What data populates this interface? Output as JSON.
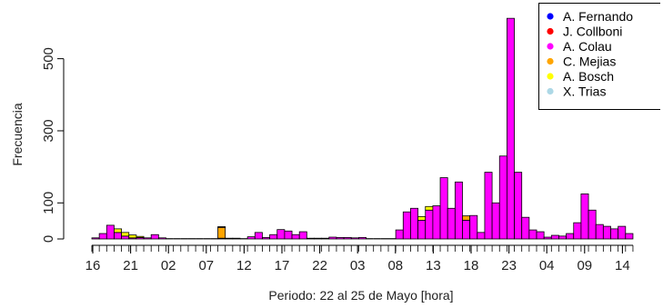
{
  "chart_data": {
    "type": "bar",
    "stacked": true,
    "xlabel": "Periodo: 22 al 25 de Mayo [hora]",
    "ylabel": "Frecuencia",
    "ylim": [
      0,
      620
    ],
    "yticks": [
      0,
      100,
      300,
      500
    ],
    "xtick_labels": [
      "16",
      "21",
      "02",
      "07",
      "12",
      "17",
      "22",
      "03",
      "08",
      "13",
      "18",
      "23",
      "04",
      "09",
      "14"
    ],
    "legend_position": "top-right",
    "series": [
      {
        "name": "A. Fernando",
        "color": "#0000ff",
        "values": [
          0,
          0,
          0,
          0,
          0,
          0,
          0,
          0,
          0,
          0,
          0,
          0,
          0,
          0,
          0,
          0,
          0,
          0,
          0,
          0,
          0,
          0,
          0,
          0,
          0,
          0,
          0,
          0,
          0,
          0,
          0,
          0,
          0,
          0,
          0,
          0,
          0,
          0,
          0,
          0,
          0,
          0,
          0,
          0,
          0,
          0,
          0,
          0,
          0,
          0,
          0,
          0,
          0,
          0,
          0,
          0,
          0,
          0,
          0,
          0,
          0,
          0,
          0,
          0,
          0,
          0,
          0,
          0,
          0,
          0,
          0,
          0,
          0
        ]
      },
      {
        "name": "J. Collboni",
        "color": "#ff0000",
        "values": [
          0,
          0,
          0,
          0,
          0,
          0,
          0,
          0,
          0,
          0,
          0,
          0,
          0,
          0,
          0,
          0,
          0,
          0,
          0,
          0,
          0,
          0,
          0,
          0,
          0,
          0,
          0,
          0,
          0,
          0,
          0,
          0,
          0,
          0,
          0,
          0,
          0,
          0,
          0,
          0,
          0,
          0,
          0,
          0,
          0,
          0,
          0,
          0,
          0,
          0,
          0,
          0,
          0,
          0,
          0,
          0,
          0,
          0,
          0,
          0,
          0,
          0,
          0,
          0,
          0,
          0,
          0,
          0,
          0,
          0,
          0,
          0,
          0
        ]
      },
      {
        "name": "A. Colau",
        "color": "#ff00ff",
        "values": [
          3,
          15,
          38,
          18,
          8,
          3,
          4,
          3,
          12,
          3,
          0,
          0,
          0,
          0,
          0,
          0,
          0,
          2,
          2,
          2,
          0,
          6,
          18,
          4,
          12,
          26,
          22,
          12,
          20,
          2,
          2,
          2,
          5,
          4,
          4,
          3,
          4,
          0,
          0,
          0,
          0,
          25,
          75,
          85,
          52,
          80,
          92,
          170,
          85,
          158,
          52,
          65,
          18,
          185,
          100,
          230,
          612,
          185,
          60,
          25,
          20,
          5,
          10,
          8,
          15,
          45,
          125,
          80,
          40,
          35,
          28,
          35,
          15
        ]
      },
      {
        "name": "C. Mejias",
        "color": "#ffa500",
        "values": [
          0,
          0,
          0,
          0,
          0,
          0,
          0,
          0,
          0,
          0,
          0,
          0,
          0,
          0,
          0,
          0,
          0,
          30,
          0,
          0,
          0,
          0,
          0,
          0,
          0,
          0,
          0,
          0,
          0,
          0,
          0,
          0,
          0,
          0,
          0,
          0,
          0,
          0,
          0,
          0,
          0,
          0,
          0,
          0,
          0,
          0,
          0,
          0,
          0,
          0,
          12,
          0,
          0,
          0,
          0,
          0,
          0,
          0,
          0,
          0,
          0,
          0,
          0,
          0,
          0,
          0,
          0,
          0,
          0,
          0,
          0,
          0,
          0
        ]
      },
      {
        "name": "A. Bosch",
        "color": "#ffff00",
        "values": [
          0,
          0,
          0,
          10,
          10,
          8,
          3,
          0,
          0,
          0,
          0,
          0,
          0,
          0,
          0,
          0,
          0,
          2,
          0,
          0,
          0,
          0,
          0,
          0,
          0,
          0,
          0,
          0,
          0,
          0,
          0,
          0,
          0,
          0,
          0,
          0,
          0,
          0,
          0,
          0,
          0,
          0,
          0,
          0,
          10,
          10,
          0,
          0,
          0,
          0,
          0,
          0,
          0,
          0,
          0,
          0,
          0,
          0,
          0,
          0,
          0,
          0,
          0,
          0,
          0,
          0,
          0,
          0,
          0,
          0,
          0,
          0,
          0
        ]
      },
      {
        "name": "X. Trias",
        "color": "#add8e6",
        "values": [
          0,
          0,
          0,
          0,
          0,
          0,
          0,
          0,
          0,
          0,
          0,
          0,
          0,
          0,
          0,
          0,
          0,
          0,
          0,
          0,
          0,
          0,
          0,
          0,
          0,
          0,
          0,
          0,
          0,
          0,
          0,
          0,
          0,
          0,
          0,
          0,
          0,
          0,
          0,
          0,
          0,
          0,
          0,
          0,
          0,
          0,
          0,
          0,
          0,
          0,
          0,
          0,
          0,
          0,
          0,
          0,
          0,
          0,
          0,
          0,
          0,
          0,
          0,
          0,
          0,
          0,
          0,
          0,
          0,
          0,
          0,
          0,
          0
        ]
      }
    ]
  }
}
